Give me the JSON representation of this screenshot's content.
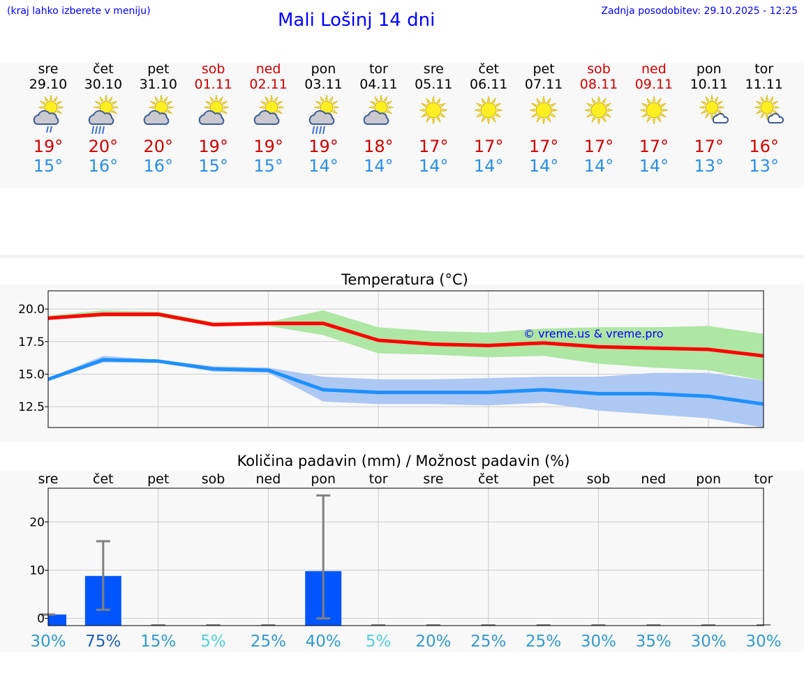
{
  "header": {
    "hint": "(kraj lahko izberete v meniju)",
    "title": "Mali Lošinj 14 dni",
    "updated": "Zadnja posodobitev: 29.10.2025 - 12:25"
  },
  "forecast": [
    {
      "day": "sre",
      "date": "29.10",
      "weekend": false,
      "icon": "sun-cloud-rain-icon",
      "max": "19°",
      "min": "15°"
    },
    {
      "day": "čet",
      "date": "30.10",
      "weekend": false,
      "icon": "sun-cloud-heavy-rain-icon",
      "max": "20°",
      "min": "16°"
    },
    {
      "day": "pet",
      "date": "31.10",
      "weekend": false,
      "icon": "sun-cloud-icon",
      "max": "20°",
      "min": "16°"
    },
    {
      "day": "sob",
      "date": "01.11",
      "weekend": true,
      "icon": "sun-cloud-icon",
      "max": "19°",
      "min": "15°"
    },
    {
      "day": "ned",
      "date": "02.11",
      "weekend": true,
      "icon": "sun-cloud-icon",
      "max": "19°",
      "min": "15°"
    },
    {
      "day": "pon",
      "date": "03.11",
      "weekend": false,
      "icon": "sun-cloud-heavy-rain-icon",
      "max": "19°",
      "min": "14°"
    },
    {
      "day": "tor",
      "date": "04.11",
      "weekend": false,
      "icon": "sun-cloud-icon",
      "max": "18°",
      "min": "14°"
    },
    {
      "day": "sre",
      "date": "05.11",
      "weekend": false,
      "icon": "sun-icon",
      "max": "17°",
      "min": "14°"
    },
    {
      "day": "čet",
      "date": "06.11",
      "weekend": false,
      "icon": "sun-icon",
      "max": "17°",
      "min": "14°"
    },
    {
      "day": "pet",
      "date": "07.11",
      "weekend": false,
      "icon": "sun-icon",
      "max": "17°",
      "min": "14°"
    },
    {
      "day": "sob",
      "date": "08.11",
      "weekend": true,
      "icon": "sun-icon",
      "max": "17°",
      "min": "14°"
    },
    {
      "day": "ned",
      "date": "09.11",
      "weekend": true,
      "icon": "sun-icon",
      "max": "17°",
      "min": "14°"
    },
    {
      "day": "pon",
      "date": "10.11",
      "weekend": false,
      "icon": "sun-small-cloud-icon",
      "max": "17°",
      "min": "13°"
    },
    {
      "day": "tor",
      "date": "11.11",
      "weekend": false,
      "icon": "sun-small-cloud-icon",
      "max": "16°",
      "min": "13°"
    }
  ],
  "colors": {
    "max_line": "#ff0000",
    "max_band": "#aee6a4",
    "min_line": "#1e90ff",
    "min_band": "#aec8f4",
    "precip_bar": "#0055ff",
    "error_bar": "#808080",
    "title_blue": "#0000ff",
    "weekend_red": "#cc0000"
  },
  "chart_data": [
    {
      "type": "line",
      "title": "Temperatura (°C)",
      "ylim": [
        10.9,
        21.4
      ],
      "yticks": [
        "12.5",
        "15.0",
        "17.5",
        "20.0"
      ],
      "x": [
        0,
        1,
        2,
        3,
        4,
        5,
        6,
        7,
        8,
        9,
        10,
        11,
        12,
        13
      ],
      "series": [
        {
          "name": "max",
          "values": [
            19.3,
            19.6,
            19.6,
            18.8,
            18.9,
            18.9,
            17.6,
            17.3,
            17.2,
            17.4,
            17.1,
            17.0,
            16.9,
            16.4
          ],
          "band_low": [
            19.2,
            19.4,
            19.4,
            18.7,
            18.7,
            18.0,
            16.6,
            16.5,
            16.3,
            16.4,
            15.8,
            15.5,
            15.3,
            14.5
          ],
          "band_high": [
            19.5,
            19.9,
            19.8,
            19.0,
            19.0,
            19.9,
            18.6,
            18.3,
            18.2,
            18.5,
            18.6,
            18.6,
            18.7,
            18.1
          ]
        },
        {
          "name": "min",
          "values": [
            14.6,
            16.1,
            16.0,
            15.4,
            15.3,
            13.8,
            13.6,
            13.6,
            13.6,
            13.8,
            13.5,
            13.5,
            13.3,
            12.7
          ],
          "band_low": [
            14.5,
            15.9,
            15.9,
            15.2,
            15.1,
            12.9,
            12.7,
            12.7,
            12.6,
            12.8,
            12.2,
            11.9,
            11.6,
            10.9
          ],
          "band_high": [
            14.7,
            16.4,
            16.1,
            15.6,
            15.5,
            14.8,
            14.6,
            14.6,
            14.7,
            14.8,
            14.8,
            15.1,
            15.1,
            14.5
          ]
        }
      ],
      "annotation": "© vreme.us & vreme.pro",
      "grid": true
    },
    {
      "type": "bar",
      "title": "Količina padavin (mm) / Možnost padavin (%)",
      "categories": [
        "sre",
        "čet",
        "pet",
        "sob",
        "ned",
        "pon",
        "tor",
        "sre",
        "čet",
        "pet",
        "sob",
        "ned",
        "pon",
        "tor"
      ],
      "ylim": [
        -1.5,
        27.0
      ],
      "yticks": [
        "0",
        "10",
        "20"
      ],
      "values": [
        0.8,
        8.8,
        0,
        0,
        0,
        9.8,
        0,
        0,
        0,
        0,
        0,
        0,
        0,
        0
      ],
      "err_low": [
        0.8,
        1.8,
        0,
        0,
        0,
        0,
        0,
        0,
        0,
        0,
        0,
        0,
        0,
        0
      ],
      "err_high": [
        0.8,
        16.0,
        0,
        0,
        0,
        25.5,
        0,
        0,
        0,
        0,
        0,
        0,
        0,
        0
      ],
      "probabilities": [
        "30%",
        "75%",
        "15%",
        "5%",
        "25%",
        "40%",
        "5%",
        "20%",
        "25%",
        "25%",
        "30%",
        "35%",
        "30%",
        "30%"
      ],
      "probability_colors": [
        "#3399cc",
        "#1f5fb4",
        "#3399cc",
        "#55ccdd",
        "#3399cc",
        "#3399cc",
        "#55ccdd",
        "#3399cc",
        "#3399cc",
        "#3399cc",
        "#3399cc",
        "#3399cc",
        "#3399cc",
        "#3399cc"
      ],
      "grid": true
    }
  ]
}
